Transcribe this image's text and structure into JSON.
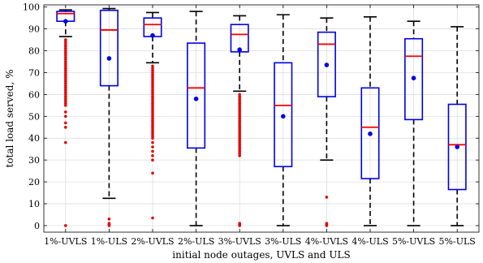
{
  "chart_data": {
    "type": "box",
    "xlabel": "initial node outages, UVLS and ULS",
    "ylabel": "total load served, %",
    "ylim": [
      -3,
      101
    ],
    "yticks": [
      0,
      10,
      20,
      30,
      40,
      50,
      60,
      70,
      80,
      90,
      100
    ],
    "grid": true,
    "categories": [
      "1%-UVLS",
      "1%-ULS",
      "2%-UVLS",
      "2%-ULS",
      "3%-UVLS",
      "3%-ULS",
      "4%-UVLS",
      "4%-ULS",
      "5%-UVLS",
      "5%-ULS"
    ],
    "colors": {
      "box": "#0000e6",
      "median": "#ff0000",
      "mean": "#0000e6",
      "outlier": "#e60000",
      "whisker": "#000000",
      "grid": "#d9d9d9"
    },
    "boxes": [
      {
        "category": "1%-UVLS",
        "whisker_low": 86.5,
        "q1": 93.5,
        "median": 97.0,
        "q3": 98.0,
        "whisker_high": 98.7,
        "mean": 93.5,
        "outliers": [
          85,
          84,
          83,
          82,
          81,
          80,
          79,
          78,
          77,
          76,
          75,
          74,
          73,
          72,
          71,
          70,
          69,
          68,
          67,
          66,
          65,
          64,
          63,
          62,
          61,
          60,
          59,
          58,
          57,
          56,
          55,
          52,
          50,
          47,
          45,
          38,
          0
        ]
      },
      {
        "category": "1%-ULS",
        "whisker_low": 12.5,
        "q1": 64,
        "median": 89.5,
        "q3": 98.5,
        "whisker_high": 99.3,
        "mean": 76.5,
        "outliers": [
          3,
          1,
          0.5,
          0
        ]
      },
      {
        "category": "2%-UVLS",
        "whisker_low": 74.5,
        "q1": 86.5,
        "median": 92.0,
        "q3": 95.0,
        "whisker_high": 97.5,
        "mean": 87.0,
        "outliers": [
          73,
          72,
          71,
          70,
          69,
          68,
          67,
          66,
          65,
          64,
          63,
          62,
          61,
          60,
          59,
          58,
          57,
          56,
          55,
          54,
          53,
          52,
          51,
          50,
          49,
          48,
          47,
          46,
          45,
          44,
          43,
          42,
          41,
          40,
          38,
          36,
          34,
          32,
          30,
          24,
          3.5
        ]
      },
      {
        "category": "2%-ULS",
        "whisker_low": 0,
        "q1": 35.5,
        "median": 63.0,
        "q3": 83.5,
        "whisker_high": 98.0,
        "mean": 58.0,
        "outliers": []
      },
      {
        "category": "3%-UVLS",
        "whisker_low": 61.5,
        "q1": 79.5,
        "median": 87.5,
        "q3": 92.0,
        "whisker_high": 96.0,
        "mean": 80.5,
        "outliers": [
          60,
          59,
          58,
          57,
          56,
          55,
          54,
          53,
          52,
          51,
          50,
          49,
          48,
          47,
          46,
          45,
          44,
          43,
          42,
          41,
          40,
          39,
          38,
          37,
          36,
          35,
          34,
          33,
          32,
          1,
          0.5,
          0
        ]
      },
      {
        "category": "3%-ULS",
        "whisker_low": 0,
        "q1": 27.0,
        "median": 55.0,
        "q3": 74.5,
        "whisker_high": 96.5,
        "mean": 50.0,
        "outliers": []
      },
      {
        "category": "4%-UVLS",
        "whisker_low": 30.0,
        "q1": 59.0,
        "median": 83.0,
        "q3": 88.5,
        "whisker_high": 95.0,
        "mean": 73.5,
        "outliers": [
          13,
          1,
          0.5,
          0
        ]
      },
      {
        "category": "4%-ULS",
        "whisker_low": 0,
        "q1": 21.5,
        "median": 45.0,
        "q3": 63.0,
        "whisker_high": 95.5,
        "mean": 42.0,
        "outliers": []
      },
      {
        "category": "5%-UVLS",
        "whisker_low": 0,
        "q1": 48.5,
        "median": 77.5,
        "q3": 85.5,
        "whisker_high": 93.5,
        "mean": 67.5,
        "outliers": []
      },
      {
        "category": "5%-ULS",
        "whisker_low": 0,
        "q1": 16.5,
        "median": 37.0,
        "q3": 55.5,
        "whisker_high": 91.0,
        "mean": 36.0,
        "outliers": []
      }
    ]
  }
}
